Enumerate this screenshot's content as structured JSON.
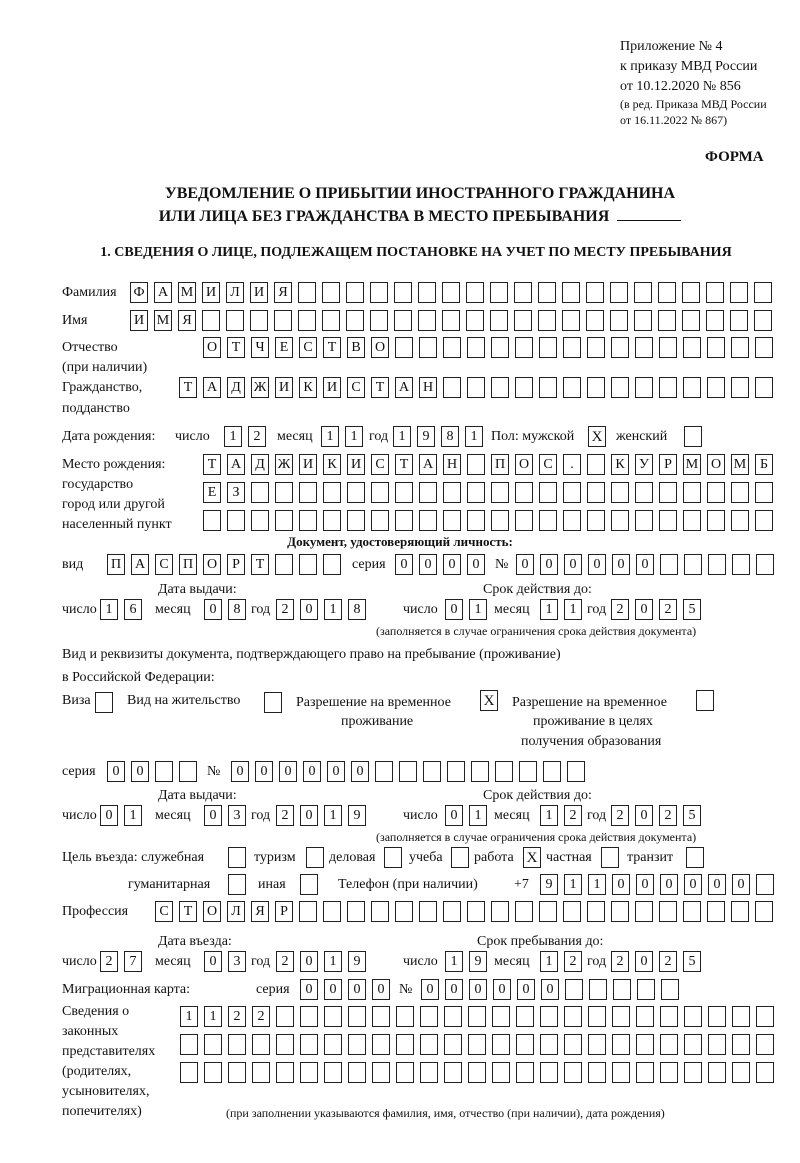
{
  "header": {
    "appendix": "Приложение № 4",
    "order": "к приказу МВД России",
    "order_date": "от 10.12.2020 № 856",
    "revision_1": "(в ред. Приказа МВД России",
    "revision_2": "от 16.11.2022 № 867)",
    "form_label": "ФОРМА",
    "title_1": "УВЕДОМЛЕНИЕ О ПРИБЫТИИ ИНОСТРАННОГО ГРАЖДАНИНА",
    "title_2": "ИЛИ ЛИЦА БЕЗ ГРАЖДАНСТВА В МЕСТО ПРЕБЫВАНИЯ",
    "section_1": "1. СВЕДЕНИЯ О ЛИЦЕ, ПОДЛЕЖАЩЕМ ПОСТАНОВКЕ НА УЧЕТ ПО МЕСТУ ПРЕБЫВАНИЯ"
  },
  "labels": {
    "surname": "Фамилия",
    "name": "Имя",
    "patronymic_1": "Отчество",
    "patronymic_2": "(при наличии)",
    "citizenship_1": "Гражданство,",
    "citizenship_2": "подданство",
    "birth_date": "Дата рождения:",
    "day": "число",
    "month": "месяц",
    "year": "год",
    "sex_male": "Пол: мужской",
    "sex_female": "женский",
    "birthplace_1": "Место рождения:",
    "birthplace_2": "государство",
    "birthplace_3": "город или другой",
    "birthplace_4": "населенный пункт",
    "id_doc": "Документ, удостоверяющий личность:",
    "kind": "вид",
    "series": "серия",
    "number": "№",
    "issue_date": "Дата выдачи:",
    "valid_until": "Срок действия до:",
    "validity_note": "(заполняется в случае ограничения срока действия документа)",
    "right_doc_1": "Вид и реквизиты документа, подтверждающего право на пребывание (проживание)",
    "right_doc_2": "в Российской Федерации:",
    "visa": "Виза",
    "residence_permit": "Вид на жительство",
    "temp_residence_1": "Разрешение на временное",
    "temp_residence_2": "проживание",
    "temp_edu_1": "Разрешение на временное",
    "temp_edu_2": "проживание в целях",
    "temp_edu_3": "получения образования",
    "purpose": "Цель въезда: служебная",
    "tourism": "туризм",
    "business": "деловая",
    "study": "учеба",
    "work": "работа",
    "private": "частная",
    "transit": "транзит",
    "humanitarian": "гуманитарная",
    "other": "иная",
    "phone": "Телефон (при наличии)",
    "phone_prefix": "+7",
    "profession": "Профессия",
    "entry_date": "Дата въезда:",
    "stay_until": "Срок пребывания до:",
    "migration_card": "Миграционная карта:",
    "reps_1": "Сведения о",
    "reps_2": "законных",
    "reps_3": "представителях",
    "reps_4": "(родителях,",
    "reps_5": "усыновителях,",
    "reps_6": "попечителях)",
    "reps_note": "(при заполнении указываются фамилия, имя, отчество (при наличии), дата рождения)"
  },
  "person": {
    "surname": "ФАМИЛИЯ",
    "name": "ИМЯ",
    "patronymic": "ОТЧЕСТВО",
    "citizenship": "ТАДЖИКИСТАН",
    "birth_day": "12",
    "birth_month": "11",
    "birth_year": "1981",
    "sex_male": "X",
    "sex_female": "",
    "birthplace_1": "ТАДЖИКИСТАН ПОС. КУРМОМБ",
    "birthplace_2": "ЕЗ",
    "birthplace_3": ""
  },
  "id_document": {
    "kind": "ПАСПОРТ",
    "series": "0000",
    "number": "000000",
    "issue_day": "16",
    "issue_month": "08",
    "issue_year": "2018",
    "valid_day": "01",
    "valid_month": "11",
    "valid_year": "2025"
  },
  "right_document": {
    "visa": "",
    "residence_permit": "",
    "temp_residence": "X",
    "temp_edu": "",
    "series": "00",
    "number": "000000",
    "issue_day": "01",
    "issue_month": "03",
    "issue_year": "2019",
    "valid_day": "01",
    "valid_month": "12",
    "valid_year": "2025"
  },
  "purpose": {
    "official": "",
    "tourism": "",
    "business": "",
    "study": "",
    "work": "X",
    "private": "",
    "transit": "",
    "humanitarian": "",
    "other": ""
  },
  "phone": "911000000",
  "profession": "СТОЛЯР",
  "entry": {
    "day": "27",
    "month": "03",
    "year": "2019",
    "stay_day": "19",
    "stay_month": "12",
    "stay_year": "2025"
  },
  "migration_card": {
    "series": "0000",
    "number": "000000"
  },
  "representatives": {
    "line_1": "1122",
    "line_2": "",
    "line_3": ""
  }
}
